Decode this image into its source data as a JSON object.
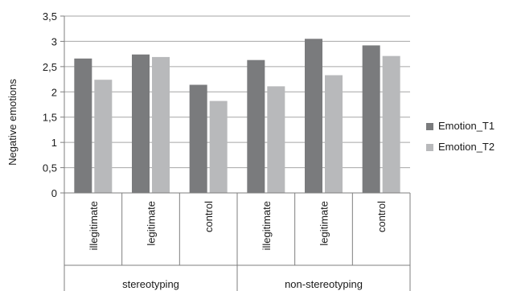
{
  "chart_data": {
    "type": "bar",
    "ylabel": "Negative emotions",
    "ylim": [
      0,
      3.5
    ],
    "yticks": [
      "0",
      "0,5",
      "1",
      "1,5",
      "2",
      "2,5",
      "3",
      "3,5"
    ],
    "grid": true,
    "legend_position": "right",
    "categories": [
      "illegitimate",
      "legitimate",
      "control",
      "illegitimate",
      "legitimate",
      "control"
    ],
    "groups": [
      {
        "label": "stereotyping",
        "span": 3
      },
      {
        "label": "non-stereotyping",
        "span": 3
      }
    ],
    "series": [
      {
        "name": "Emotion_T1",
        "color": "#7a7b7d",
        "values": [
          2.66,
          2.74,
          2.14,
          2.63,
          3.05,
          2.92
        ]
      },
      {
        "name": "Emotion_T2",
        "color": "#b8b9bb",
        "values": [
          2.24,
          2.69,
          1.82,
          2.11,
          2.33,
          2.71
        ]
      }
    ]
  }
}
